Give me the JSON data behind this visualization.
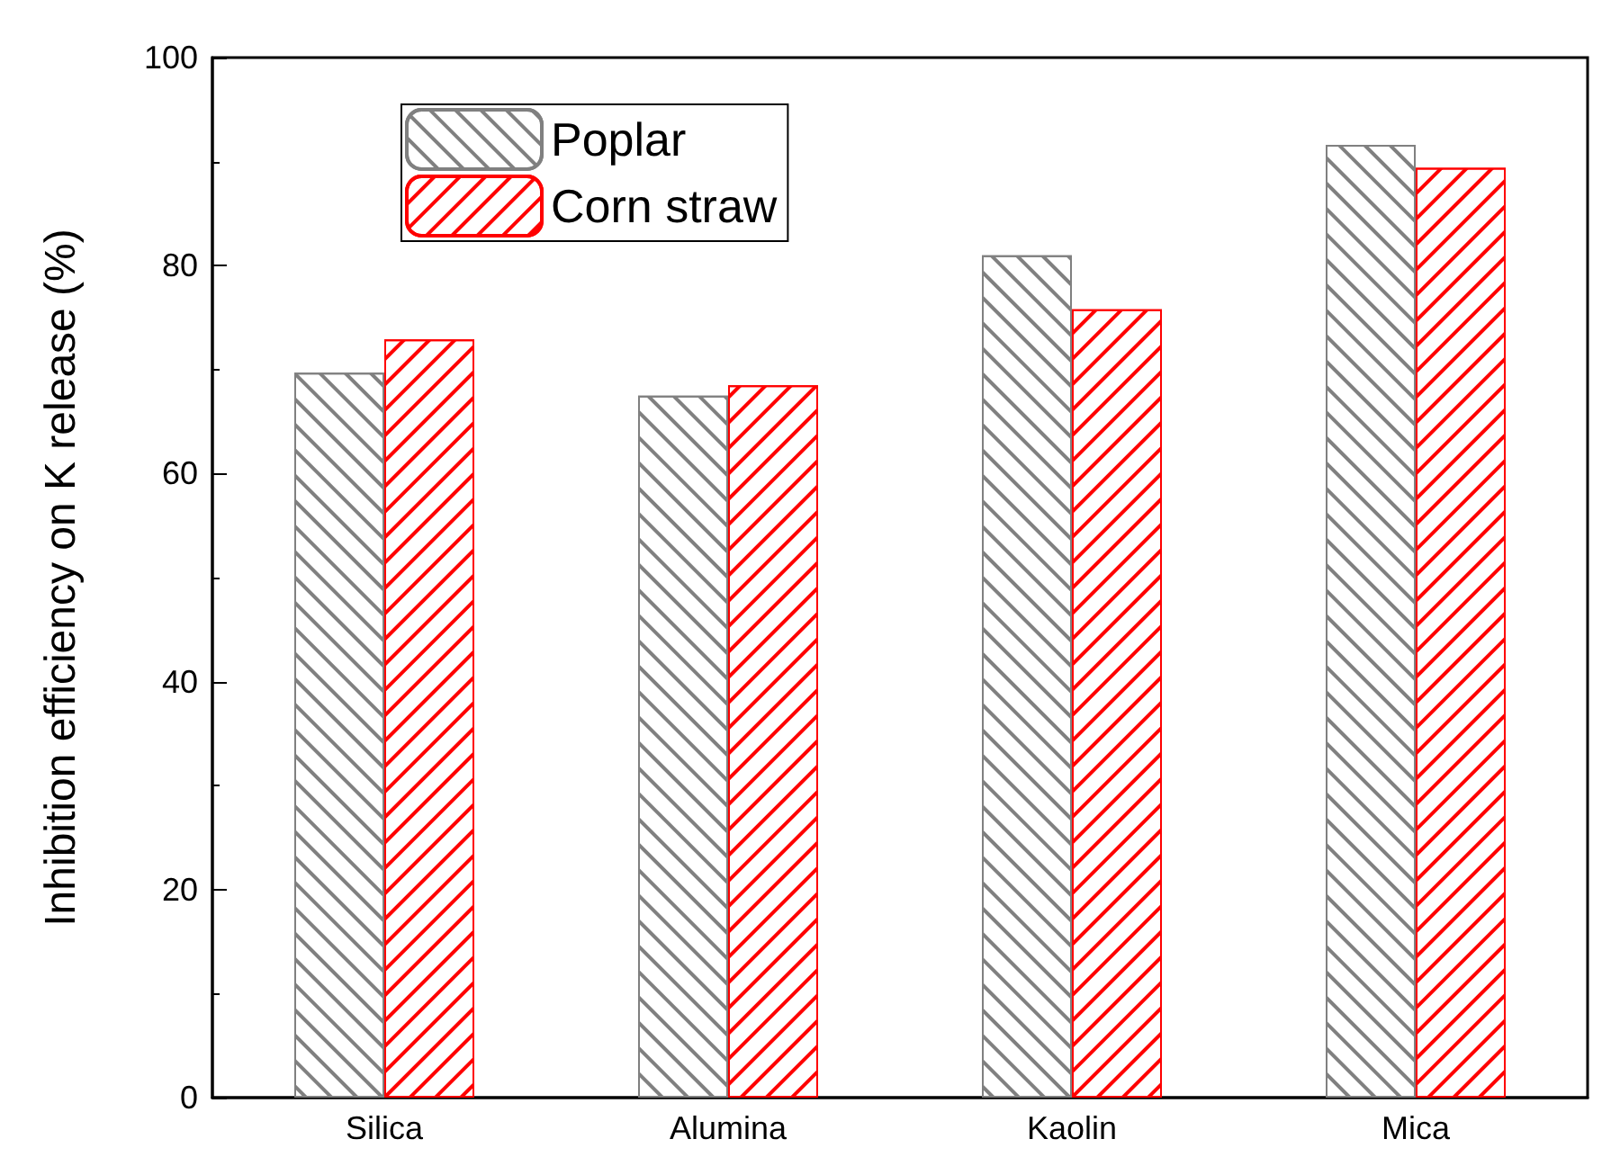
{
  "chart_data": {
    "type": "bar",
    "ylabel": "Inhibition efficiency on K release (%)",
    "categories": [
      "Silica",
      "Alumina",
      "Kaolin",
      "Mica"
    ],
    "series": [
      {
        "name": "Poplar",
        "color": "#808080",
        "values": [
          69.7,
          67.5,
          81.0,
          91.6
        ]
      },
      {
        "name": "Corn straw",
        "color": "#ff0000",
        "values": [
          72.9,
          68.5,
          75.8,
          89.4
        ]
      }
    ],
    "ylim": [
      0,
      100
    ],
    "yticks": [
      0,
      20,
      40,
      60,
      80,
      100
    ],
    "grid": false,
    "legend": "top left"
  }
}
